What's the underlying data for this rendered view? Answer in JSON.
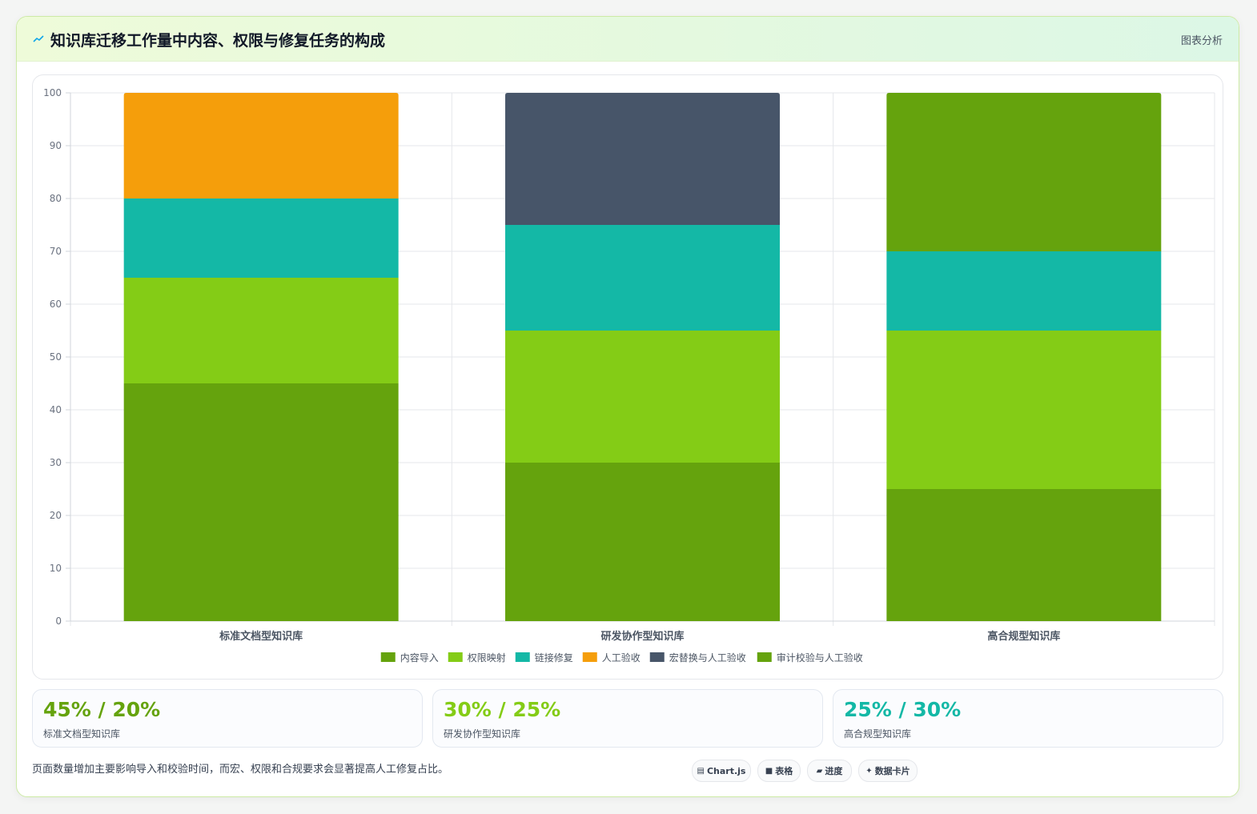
{
  "header": {
    "title": "知识库迁移工作量中内容、权限与修复任务的构成",
    "tag": "图表分析"
  },
  "chart_data": {
    "type": "bar",
    "stacked": true,
    "categories": [
      "标准文档型知识库",
      "研发协作型知识库",
      "高合规型知识库"
    ],
    "ylim": [
      0,
      100
    ],
    "yticks": [
      0,
      10,
      20,
      30,
      40,
      50,
      60,
      70,
      80,
      90,
      100
    ],
    "grid": true,
    "legend_position": "bottom",
    "series": [
      {
        "name": "内容导入",
        "color": "#65a30d",
        "values": [
          45,
          30,
          25
        ]
      },
      {
        "name": "权限映射",
        "color": "#84cc16",
        "values": [
          20,
          25,
          30
        ]
      },
      {
        "name": "链接修复",
        "color": "#14b8a6",
        "values": [
          15,
          20,
          15
        ]
      },
      {
        "name": "人工验收",
        "color": "#f59e0b",
        "values": [
          20,
          0,
          0
        ]
      },
      {
        "name": "宏替换与人工验收",
        "color": "#475569",
        "values": [
          0,
          25,
          0
        ]
      },
      {
        "name": "审计校验与人工验收",
        "color": "#65a30d",
        "values": [
          0,
          0,
          30
        ]
      }
    ]
  },
  "stats": [
    {
      "value": "45% / 20%",
      "label": "标准文档型知识库",
      "color": "#65a30d"
    },
    {
      "value": "30% / 25%",
      "label": "研发协作型知识库",
      "color": "#84cc16"
    },
    {
      "value": "25% / 30%",
      "label": "高合规型知识库",
      "color": "#14b8a6"
    }
  ],
  "footnote": "页面数量增加主要影响导入和校验时间，而宏、权限和合规要求会显著提高人工修复占比。",
  "badges": [
    {
      "icon": "chart-icon",
      "glyph": "▤",
      "label": "Chart.js"
    },
    {
      "icon": "table-icon",
      "glyph": "■",
      "label": "表格"
    },
    {
      "icon": "progress-icon",
      "glyph": "▰",
      "label": "进度"
    },
    {
      "icon": "sparkle-icon",
      "glyph": "✦",
      "label": "数据卡片"
    }
  ]
}
